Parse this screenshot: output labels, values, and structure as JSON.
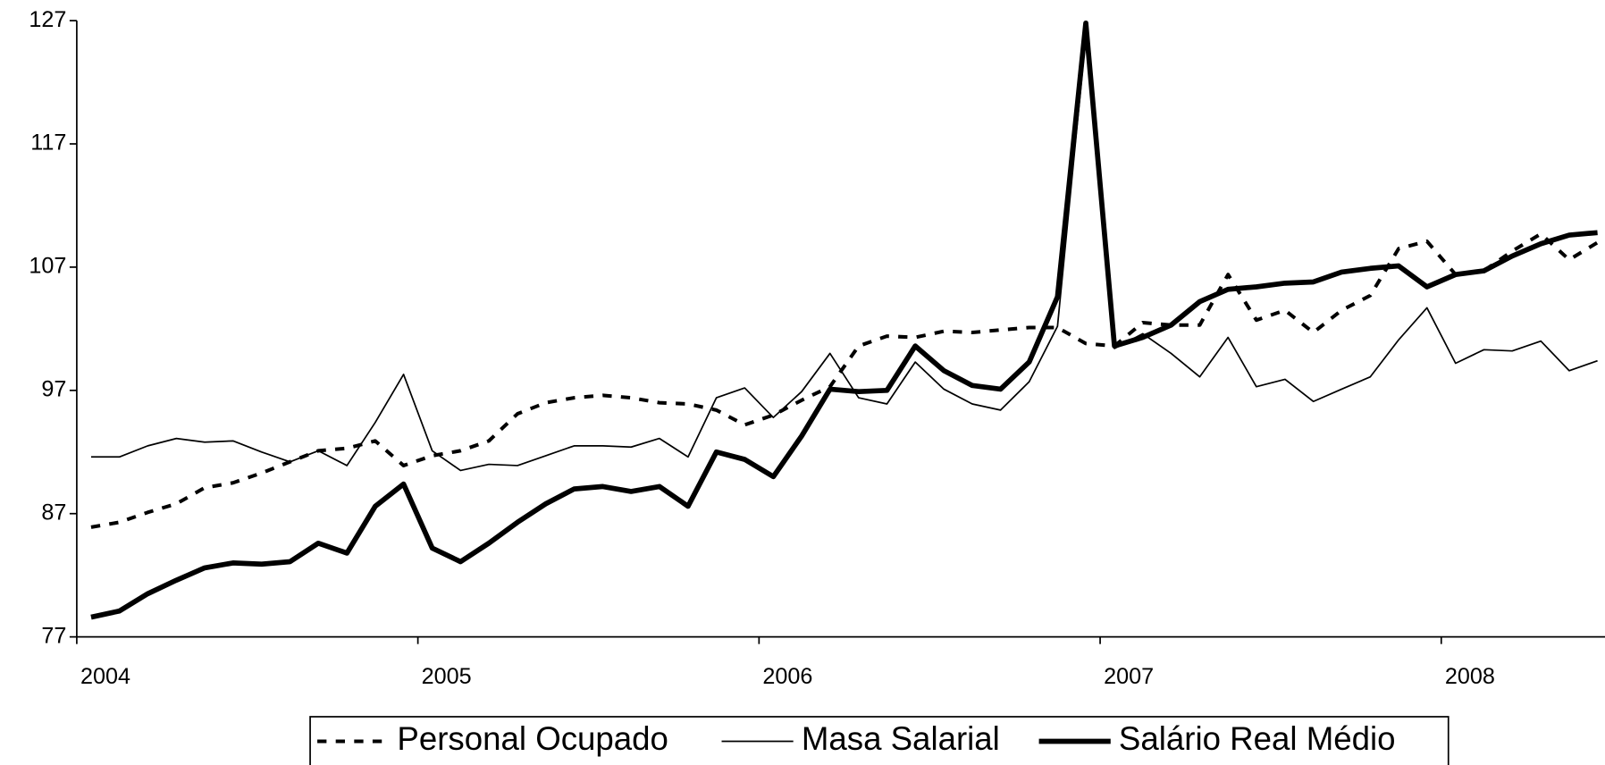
{
  "chart_data": {
    "type": "line",
    "x": [
      2004.042,
      2004.125,
      2004.208,
      2004.292,
      2004.375,
      2004.458,
      2004.542,
      2004.625,
      2004.708,
      2004.792,
      2004.875,
      2004.958,
      2005.042,
      2005.125,
      2005.208,
      2005.292,
      2005.375,
      2005.458,
      2005.542,
      2005.625,
      2005.708,
      2005.792,
      2005.875,
      2005.958,
      2006.042,
      2006.125,
      2006.208,
      2006.292,
      2006.375,
      2006.458,
      2006.542,
      2006.625,
      2006.708,
      2006.792,
      2006.875,
      2006.958,
      2007.042,
      2007.125,
      2007.208,
      2007.292,
      2007.375,
      2007.458,
      2007.542,
      2007.625,
      2007.708,
      2007.792,
      2007.875,
      2007.958,
      2008.042,
      2008.125,
      2008.208,
      2008.292,
      2008.375,
      2008.458
    ],
    "xlim": [
      2004,
      2008.48
    ],
    "xticks": [
      2004,
      2005,
      2006,
      2007,
      2008
    ],
    "ylim": [
      77,
      127
    ],
    "yticks": [
      77,
      87,
      97,
      107,
      117,
      127
    ],
    "grid": false,
    "legend": "bottom",
    "series": [
      {
        "name": "Personal Ocupado",
        "color": "#000000",
        "style": "dashed",
        "line_width": 3.5,
        "values": [
          85.9,
          86.3,
          87.1,
          87.8,
          89.1,
          89.5,
          90.3,
          91.2,
          92.1,
          92.3,
          92.9,
          90.9,
          91.7,
          92.1,
          92.9,
          95.1,
          96.0,
          96.4,
          96.6,
          96.4,
          96.0,
          95.9,
          95.4,
          94.2,
          95.0,
          96.2,
          97.3,
          100.6,
          101.4,
          101.3,
          101.8,
          101.7,
          101.9,
          102.1,
          102.1,
          100.8,
          100.6,
          102.5,
          102.3,
          102.3,
          106.4,
          102.7,
          103.5,
          101.7,
          103.5,
          104.7,
          108.5,
          109.1,
          106.4,
          106.7,
          108.3,
          109.7,
          107.6,
          109.0
        ]
      },
      {
        "name": "Masa Salarial",
        "color": "#000000",
        "style": "solid",
        "line_width": 1.5,
        "values": [
          91.6,
          91.6,
          92.5,
          93.1,
          92.8,
          92.9,
          92.0,
          91.2,
          92.1,
          90.9,
          94.4,
          98.3,
          92.1,
          90.5,
          91.0,
          90.9,
          91.7,
          92.5,
          92.5,
          92.4,
          93.1,
          91.6,
          96.4,
          97.2,
          94.8,
          96.9,
          100.0,
          96.4,
          95.9,
          99.3,
          97.1,
          95.9,
          95.4,
          97.7,
          102.2,
          125.7,
          100.4,
          101.6,
          100.0,
          98.1,
          101.3,
          97.3,
          97.9,
          96.1,
          97.1,
          98.1,
          101.1,
          103.7,
          99.2,
          100.3,
          100.2,
          101.0,
          98.6,
          99.4
        ]
      },
      {
        "name": "Salário Real Médio",
        "color": "#000000",
        "style": "solid",
        "line_width": 5,
        "values": [
          78.6,
          79.1,
          80.5,
          81.6,
          82.6,
          83.0,
          82.9,
          83.1,
          84.6,
          83.8,
          87.6,
          89.4,
          84.2,
          83.1,
          84.6,
          86.3,
          87.8,
          89.0,
          89.2,
          88.8,
          89.2,
          87.6,
          92.0,
          91.4,
          90.0,
          93.3,
          97.1,
          96.9,
          97.0,
          100.6,
          98.6,
          97.4,
          97.1,
          99.3,
          104.6,
          126.8,
          100.6,
          101.3,
          102.3,
          104.2,
          105.2,
          105.4,
          105.7,
          105.8,
          106.6,
          106.9,
          107.1,
          105.4,
          106.4,
          106.7,
          107.9,
          108.9,
          109.6,
          109.8
        ]
      }
    ]
  }
}
